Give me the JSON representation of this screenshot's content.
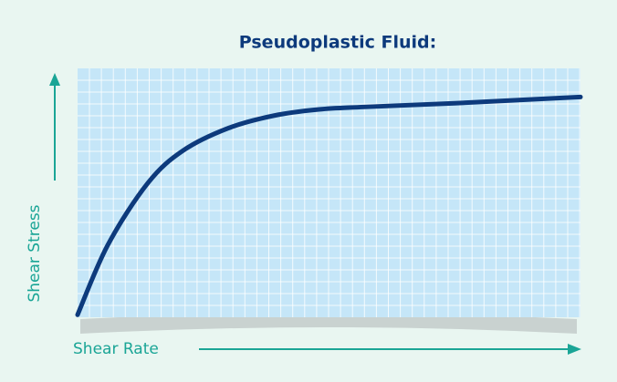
{
  "chart_data": {
    "type": "line",
    "title": "Pseudoplastic Fluid:",
    "x_label": "Shear Rate",
    "y_label": "Shear Stress",
    "x": [
      0,
      6,
      14,
      21,
      30,
      39,
      48,
      57,
      75,
      100
    ],
    "series": [
      {
        "color": "#0d3a7c",
        "values": [
          1,
          29,
          54,
          67,
          76,
          81,
          83.5,
          84.5,
          86,
          88.5
        ]
      }
    ],
    "xlim": [
      0,
      100
    ],
    "ylim": [
      0,
      100
    ]
  }
}
